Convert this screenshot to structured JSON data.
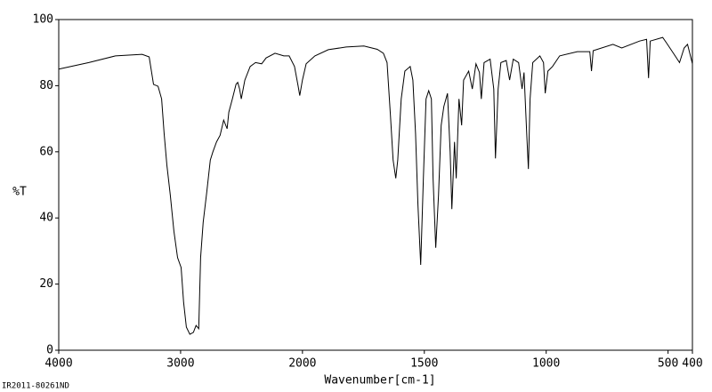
{
  "chart_data": {
    "type": "line",
    "xlabel": "Wavenumber[cm-1]",
    "ylabel": "%T",
    "note": "IR2011-80261ND",
    "x": [
      4000,
      3753,
      3535,
      3316,
      3258,
      3222,
      3185,
      3156,
      3135,
      3113,
      3084,
      3055,
      3025,
      2996,
      2975,
      2953,
      2924,
      2895,
      2873,
      2851,
      2836,
      2815,
      2785,
      2756,
      2735,
      2705,
      2676,
      2647,
      2618,
      2604,
      2575,
      2545,
      2531,
      2516,
      2502,
      2473,
      2429,
      2385,
      2335,
      2298,
      2225,
      2153,
      2109,
      2065,
      2036,
      2022,
      2000,
      1985,
      1949,
      1894,
      1821,
      1748,
      1693,
      1668,
      1653,
      1639,
      1628,
      1617,
      1609,
      1595,
      1580,
      1558,
      1547,
      1536,
      1526,
      1515,
      1504,
      1493,
      1482,
      1471,
      1464,
      1453,
      1442,
      1431,
      1420,
      1405,
      1394,
      1387,
      1376,
      1369,
      1358,
      1347,
      1339,
      1318,
      1303,
      1288,
      1274,
      1266,
      1255,
      1230,
      1215,
      1208,
      1197,
      1186,
      1164,
      1150,
      1135,
      1113,
      1099,
      1091,
      1080,
      1073,
      1066,
      1055,
      1026,
      1011,
      1004,
      993,
      974,
      945,
      872,
      821,
      814,
      807,
      726,
      690,
      617,
      588,
      580,
      573,
      522,
      507,
      471,
      453,
      434,
      420,
      400
    ],
    "values": [
      85,
      87,
      89,
      89.5,
      88.7,
      80.4,
      79.8,
      76,
      65.6,
      56,
      46.8,
      36,
      28,
      25,
      14.5,
      7,
      4.8,
      5.4,
      7.5,
      6.5,
      28,
      38.7,
      48,
      57.5,
      60,
      63,
      65,
      69.6,
      67,
      72,
      76,
      80.4,
      81,
      79,
      76,
      81.7,
      85.8,
      87,
      86.6,
      88.4,
      89.8,
      89,
      89,
      85.8,
      80,
      77,
      81.7,
      86.6,
      89,
      90.9,
      91.7,
      92,
      91,
      89.8,
      87,
      71,
      57.5,
      52,
      57.5,
      76,
      84.4,
      85.8,
      81.7,
      65.6,
      44,
      25.8,
      52,
      76,
      78.5,
      76,
      52,
      31,
      46.8,
      68,
      73.7,
      77.7,
      60,
      42.7,
      63,
      52,
      76,
      68,
      81.7,
      84.4,
      79,
      86.6,
      84,
      76,
      87,
      88,
      79,
      58,
      79,
      87,
      87.6,
      81.7,
      88,
      87,
      79,
      84,
      65.6,
      54.8,
      76,
      87,
      89,
      87,
      77.7,
      84.4,
      85.8,
      89,
      90.3,
      90.3,
      84.4,
      90.6,
      92.5,
      91.4,
      93.5,
      94,
      82.3,
      93.5,
      94.6,
      93,
      89,
      87,
      91.4,
      92.5,
      86.6
    ],
    "color": "#000000",
    "xlim": [
      4000,
      400
    ],
    "xticks": [
      4000,
      3000,
      2000,
      1500,
      1000,
      500,
      400
    ],
    "x_scale_break": 2000,
    "x_scale_factor": 2,
    "ylim": [
      0,
      100
    ],
    "yticks": [
      0,
      20,
      40,
      60,
      80,
      100
    ],
    "grid": false
  }
}
